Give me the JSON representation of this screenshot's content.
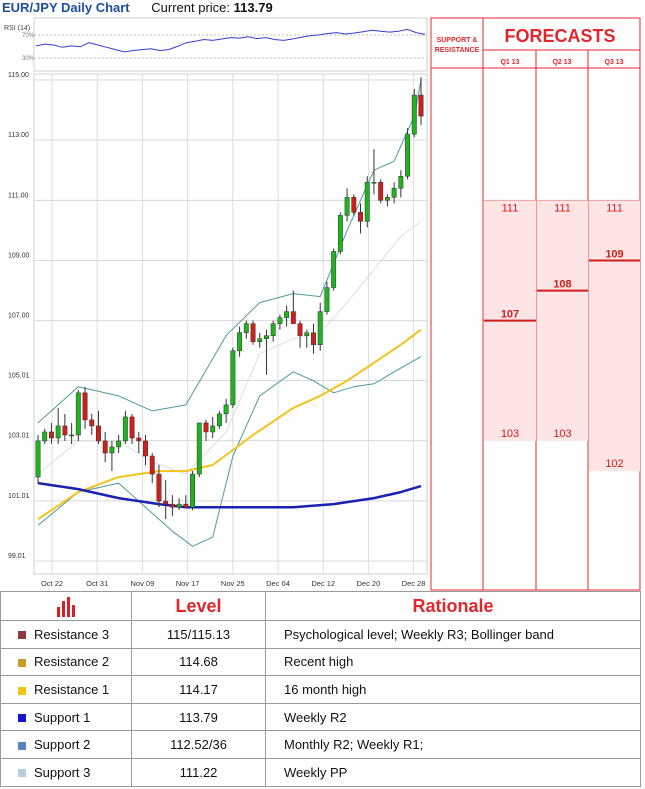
{
  "header": {
    "pair_title": "EUR/JPY Daily Chart",
    "current_price_label": "Current price:",
    "current_price_value": "113.79"
  },
  "chart_data": {
    "type": "candlestick",
    "title": "EUR/JPY Daily Chart",
    "y_ticks": [
      "99.01",
      "101.01",
      "103.01",
      "105.01",
      "107.00",
      "109.00",
      "111.00",
      "113.00",
      "115.00"
    ],
    "ylim": [
      99.01,
      115.0
    ],
    "x_ticks": [
      "Oct 22",
      "Oct 31",
      "Nov 09",
      "Nov 17",
      "Nov 25",
      "Dec 04",
      "Dec 12",
      "Dec 20",
      "Dec 28"
    ],
    "grid": true,
    "rsi": {
      "label": "RSI (14)",
      "levels": [
        "70%",
        "30%"
      ],
      "values": [
        48,
        52,
        50,
        45,
        48,
        46,
        55,
        50,
        45,
        40,
        35,
        38,
        40,
        42,
        38,
        40,
        47,
        55,
        58,
        62,
        60,
        63,
        66,
        65,
        68,
        64,
        66,
        62,
        60,
        63,
        67,
        70,
        72,
        75,
        77,
        74,
        76,
        79,
        82,
        80,
        78,
        80,
        84,
        77,
        73
      ]
    },
    "candles": [
      {
        "o": 101.8,
        "h": 103.2,
        "l": 101.6,
        "c": 103.0
      },
      {
        "o": 103.0,
        "h": 103.4,
        "l": 102.9,
        "c": 103.3
      },
      {
        "o": 103.3,
        "h": 103.6,
        "l": 102.9,
        "c": 103.1
      },
      {
        "o": 103.1,
        "h": 104.1,
        "l": 102.9,
        "c": 103.5
      },
      {
        "o": 103.5,
        "h": 103.9,
        "l": 103.0,
        "c": 103.2
      },
      {
        "o": 103.2,
        "h": 103.6,
        "l": 102.9,
        "c": 103.2
      },
      {
        "o": 103.2,
        "h": 104.7,
        "l": 103.0,
        "c": 104.6
      },
      {
        "o": 104.6,
        "h": 104.8,
        "l": 103.4,
        "c": 103.7
      },
      {
        "o": 103.7,
        "h": 103.9,
        "l": 103.2,
        "c": 103.5
      },
      {
        "o": 103.5,
        "h": 104.0,
        "l": 102.9,
        "c": 103.0
      },
      {
        "o": 103.0,
        "h": 103.3,
        "l": 102.3,
        "c": 102.6
      },
      {
        "o": 102.6,
        "h": 103.0,
        "l": 102.0,
        "c": 102.8
      },
      {
        "o": 102.8,
        "h": 103.2,
        "l": 102.6,
        "c": 103.0
      },
      {
        "o": 103.0,
        "h": 104.0,
        "l": 102.9,
        "c": 103.8
      },
      {
        "o": 103.8,
        "h": 103.9,
        "l": 102.9,
        "c": 103.1
      },
      {
        "o": 103.1,
        "h": 103.3,
        "l": 102.6,
        "c": 103.0
      },
      {
        "o": 103.0,
        "h": 103.2,
        "l": 102.2,
        "c": 102.5
      },
      {
        "o": 102.5,
        "h": 102.6,
        "l": 101.6,
        "c": 101.9
      },
      {
        "o": 101.9,
        "h": 102.2,
        "l": 100.8,
        "c": 101.0
      },
      {
        "o": 101.0,
        "h": 101.7,
        "l": 100.4,
        "c": 100.9
      },
      {
        "o": 100.9,
        "h": 101.2,
        "l": 100.5,
        "c": 100.8
      },
      {
        "o": 100.8,
        "h": 101.1,
        "l": 100.7,
        "c": 100.9
      },
      {
        "o": 100.9,
        "h": 101.2,
        "l": 100.8,
        "c": 100.8
      },
      {
        "o": 100.8,
        "h": 102.0,
        "l": 100.7,
        "c": 101.9
      },
      {
        "o": 101.9,
        "h": 103.6,
        "l": 101.8,
        "c": 103.6
      },
      {
        "o": 103.6,
        "h": 103.7,
        "l": 103.0,
        "c": 103.3
      },
      {
        "o": 103.3,
        "h": 103.8,
        "l": 103.1,
        "c": 103.5
      },
      {
        "o": 103.5,
        "h": 104.0,
        "l": 103.4,
        "c": 103.9
      },
      {
        "o": 103.9,
        "h": 104.4,
        "l": 103.6,
        "c": 104.2
      },
      {
        "o": 104.2,
        "h": 106.1,
        "l": 104.1,
        "c": 106.0
      },
      {
        "o": 106.0,
        "h": 106.8,
        "l": 105.8,
        "c": 106.6
      },
      {
        "o": 106.6,
        "h": 107.0,
        "l": 106.4,
        "c": 106.9
      },
      {
        "o": 106.9,
        "h": 107.0,
        "l": 106.2,
        "c": 106.3
      },
      {
        "o": 106.3,
        "h": 106.6,
        "l": 106.1,
        "c": 106.4
      },
      {
        "o": 106.4,
        "h": 106.7,
        "l": 105.2,
        "c": 106.5
      },
      {
        "o": 106.5,
        "h": 107.0,
        "l": 106.3,
        "c": 106.9
      },
      {
        "o": 106.9,
        "h": 107.2,
        "l": 106.7,
        "c": 107.1
      },
      {
        "o": 107.1,
        "h": 107.5,
        "l": 106.8,
        "c": 107.3
      },
      {
        "o": 107.3,
        "h": 108.0,
        "l": 106.9,
        "c": 106.9
      },
      {
        "o": 106.9,
        "h": 107.0,
        "l": 106.1,
        "c": 106.5
      },
      {
        "o": 106.5,
        "h": 106.7,
        "l": 106.1,
        "c": 106.6
      },
      {
        "o": 106.6,
        "h": 106.9,
        "l": 105.9,
        "c": 106.2
      },
      {
        "o": 106.2,
        "h": 107.6,
        "l": 106.0,
        "c": 107.3
      },
      {
        "o": 107.3,
        "h": 108.3,
        "l": 107.2,
        "c": 108.1
      },
      {
        "o": 108.1,
        "h": 109.4,
        "l": 108.0,
        "c": 109.3
      },
      {
        "o": 109.3,
        "h": 110.6,
        "l": 109.2,
        "c": 110.5
      },
      {
        "o": 110.5,
        "h": 111.4,
        "l": 110.3,
        "c": 111.1
      },
      {
        "o": 111.1,
        "h": 111.2,
        "l": 110.5,
        "c": 110.6
      },
      {
        "o": 110.6,
        "h": 110.9,
        "l": 109.9,
        "c": 110.3
      },
      {
        "o": 110.3,
        "h": 111.8,
        "l": 110.1,
        "c": 111.6
      },
      {
        "o": 111.6,
        "h": 112.7,
        "l": 111.2,
        "c": 111.6
      },
      {
        "o": 111.6,
        "h": 111.7,
        "l": 110.9,
        "c": 111.0
      },
      {
        "o": 111.0,
        "h": 111.2,
        "l": 110.8,
        "c": 111.1
      },
      {
        "o": 111.1,
        "h": 111.6,
        "l": 110.9,
        "c": 111.4
      },
      {
        "o": 111.4,
        "h": 112.0,
        "l": 111.1,
        "c": 111.8
      },
      {
        "o": 111.8,
        "h": 113.4,
        "l": 111.7,
        "c": 113.2
      },
      {
        "o": 113.2,
        "h": 114.7,
        "l": 113.1,
        "c": 114.5
      },
      {
        "o": 114.5,
        "h": 115.1,
        "l": 113.5,
        "c": 113.8
      }
    ],
    "bollinger_upper": [
      [
        0,
        103.6
      ],
      [
        6,
        104.8
      ],
      [
        12,
        104.5
      ],
      [
        17,
        104.0
      ],
      [
        22,
        104.2
      ],
      [
        28,
        106.5
      ],
      [
        33,
        107.6
      ],
      [
        38,
        107.9
      ],
      [
        42,
        107.8
      ],
      [
        46,
        110.0
      ],
      [
        50,
        112.0
      ],
      [
        53,
        112.3
      ],
      [
        56,
        113.8
      ],
      [
        57,
        115.0
      ]
    ],
    "bollinger_lower": [
      [
        0,
        100.2
      ],
      [
        6,
        101.3
      ],
      [
        12,
        101.6
      ],
      [
        17,
        100.6
      ],
      [
        20,
        100.0
      ],
      [
        23,
        99.5
      ],
      [
        26,
        99.8
      ],
      [
        29,
        102.5
      ],
      [
        33,
        104.5
      ],
      [
        38,
        105.3
      ],
      [
        41,
        105.0
      ],
      [
        44,
        104.6
      ],
      [
        47,
        104.8
      ],
      [
        50,
        104.9
      ],
      [
        53,
        105.3
      ],
      [
        57,
        105.8
      ]
    ],
    "bollinger_mid": [
      [
        0,
        101.9
      ],
      [
        6,
        103.0
      ],
      [
        12,
        103.0
      ],
      [
        17,
        102.3
      ],
      [
        22,
        101.9
      ],
      [
        28,
        103.3
      ],
      [
        33,
        105.9
      ],
      [
        38,
        106.4
      ],
      [
        42,
        106.6
      ],
      [
        46,
        107.6
      ],
      [
        50,
        108.7
      ],
      [
        54,
        109.8
      ],
      [
        57,
        110.3
      ]
    ],
    "ma_fast": [
      [
        0,
        100.4
      ],
      [
        6,
        101.3
      ],
      [
        12,
        101.8
      ],
      [
        18,
        102.0
      ],
      [
        22,
        102.0
      ],
      [
        26,
        102.2
      ],
      [
        32,
        103.2
      ],
      [
        38,
        104.1
      ],
      [
        42,
        104.5
      ],
      [
        46,
        105.0
      ],
      [
        50,
        105.6
      ],
      [
        54,
        106.2
      ],
      [
        57,
        106.7
      ]
    ],
    "ma_slow": [
      [
        0,
        101.6
      ],
      [
        6,
        101.4
      ],
      [
        12,
        101.1
      ],
      [
        18,
        100.9
      ],
      [
        22,
        100.8
      ],
      [
        30,
        100.8
      ],
      [
        38,
        100.8
      ],
      [
        44,
        100.9
      ],
      [
        50,
        101.1
      ],
      [
        54,
        101.3
      ],
      [
        57,
        101.5
      ]
    ],
    "levels": [
      {
        "label": "115.00",
        "value": 115.0,
        "color": "#7b2128",
        "bold": true
      },
      {
        "label": "114.68",
        "value": 114.68,
        "color": "#d3a24a",
        "bold": false
      },
      {
        "label": "114.17",
        "value": 114.17,
        "color": "#e8c21a",
        "bold": false
      },
      {
        "label": "113.79",
        "value": 113.79,
        "color": "#1a3aa8",
        "bold": false
      },
      {
        "label": "112.52",
        "value": 112.52,
        "color": "#3f6f9e",
        "bold": false
      },
      {
        "label": "111.22",
        "value": 111.22,
        "color": "#9fc3d1",
        "bold": false
      }
    ]
  },
  "forecast_panel": {
    "sr_label_line1": "SUPPORT &",
    "sr_label_line2": "RESISTANCE",
    "title": "FORECASTS",
    "quarters": [
      {
        "name": "Q1 13",
        "high": "111",
        "mid": "107",
        "low": "103",
        "high_val": 111,
        "mid_val": 107,
        "low_val": 103
      },
      {
        "name": "Q2 13",
        "high": "111",
        "mid": "108",
        "low": "103",
        "high_val": 111,
        "mid_val": 108,
        "low_val": 103
      },
      {
        "name": "Q3 13",
        "high": "111",
        "mid": "109",
        "low": "102",
        "high_val": 111,
        "mid_val": 109,
        "low_val": 102
      }
    ]
  },
  "table": {
    "header_level": "Level",
    "header_rationale": "Rationale",
    "rows": [
      {
        "name": "Resistance 3",
        "level": "115/115.13",
        "rationale": "Psychological level; Weekly R3; Bollinger band",
        "color": "#8b3a3e"
      },
      {
        "name": "Resistance 2",
        "level": "114.68",
        "rationale": "Recent high",
        "color": "#c89a2c"
      },
      {
        "name": "Resistance 1",
        "level": "114.17",
        "rationale": "16 month high",
        "color": "#f2c41a"
      },
      {
        "name": "Support 1",
        "level": "113.79",
        "rationale": "Weekly R2",
        "color": "#1414c8"
      },
      {
        "name": "Support 2",
        "level": "112.52/36",
        "rationale": "Monthly R2; Weekly R1;",
        "color": "#5b82b8"
      },
      {
        "name": "Support 3",
        "level": "111.22",
        "rationale": "Weekly PP",
        "color": "#b7cde0"
      }
    ]
  }
}
